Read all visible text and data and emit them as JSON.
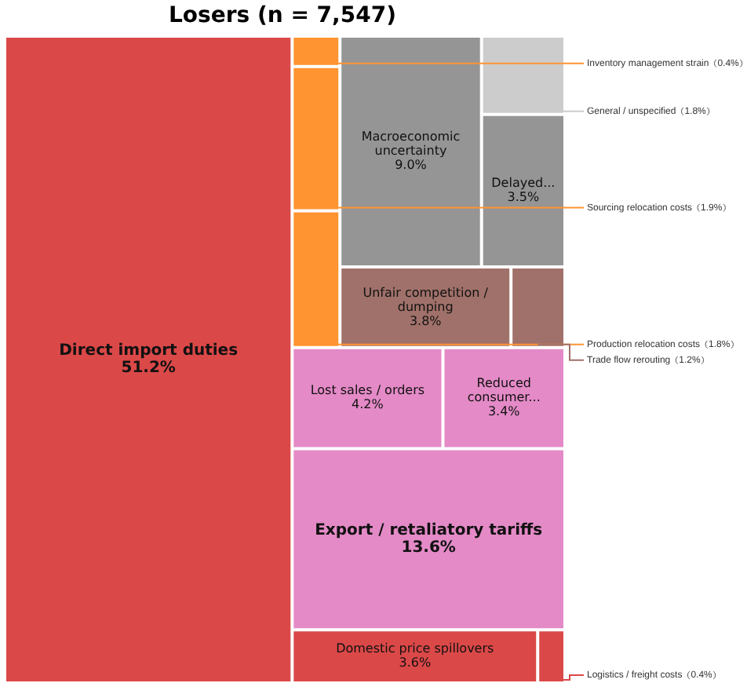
{
  "chart_data": {
    "type": "other",
    "title": "Losers  (n = 7,547)",
    "categories": [
      "Direct import duties",
      "Export / retaliatory tariffs",
      "Macroeconomic uncertainty",
      "Lost sales / orders",
      "Unfair competition / dumping",
      "Domestic price spillovers",
      "Delayed...",
      "Reduced consumer...",
      "Sourcing relocation costs",
      "Production relocation costs",
      "General / unspecified",
      "Trade flow rerouting",
      "Logistics / freight costs",
      "Inventory management strain"
    ],
    "values": [
      51.2,
      13.6,
      9.0,
      4.2,
      3.8,
      3.6,
      3.5,
      3.4,
      1.9,
      1.8,
      1.8,
      1.2,
      0.4,
      0.4
    ],
    "value_labels": [
      "51.2%",
      "13.6%",
      "9.0%",
      "4.2%",
      "3.8%",
      "3.6%",
      "3.5%",
      "3.4%",
      "1.9%",
      "1.8%",
      "1.8%",
      "1.2%",
      "0.4%",
      "0.4%"
    ],
    "colors": [
      "#db4848",
      "#e48ac7",
      "#959595",
      "#e48ac7",
      "#a0716a",
      "#db4848",
      "#959595",
      "#e48ac7",
      "#ff9431",
      "#ff9431",
      "#cccccc",
      "#a0716a",
      "#db4848",
      "#ff9431"
    ]
  }
}
